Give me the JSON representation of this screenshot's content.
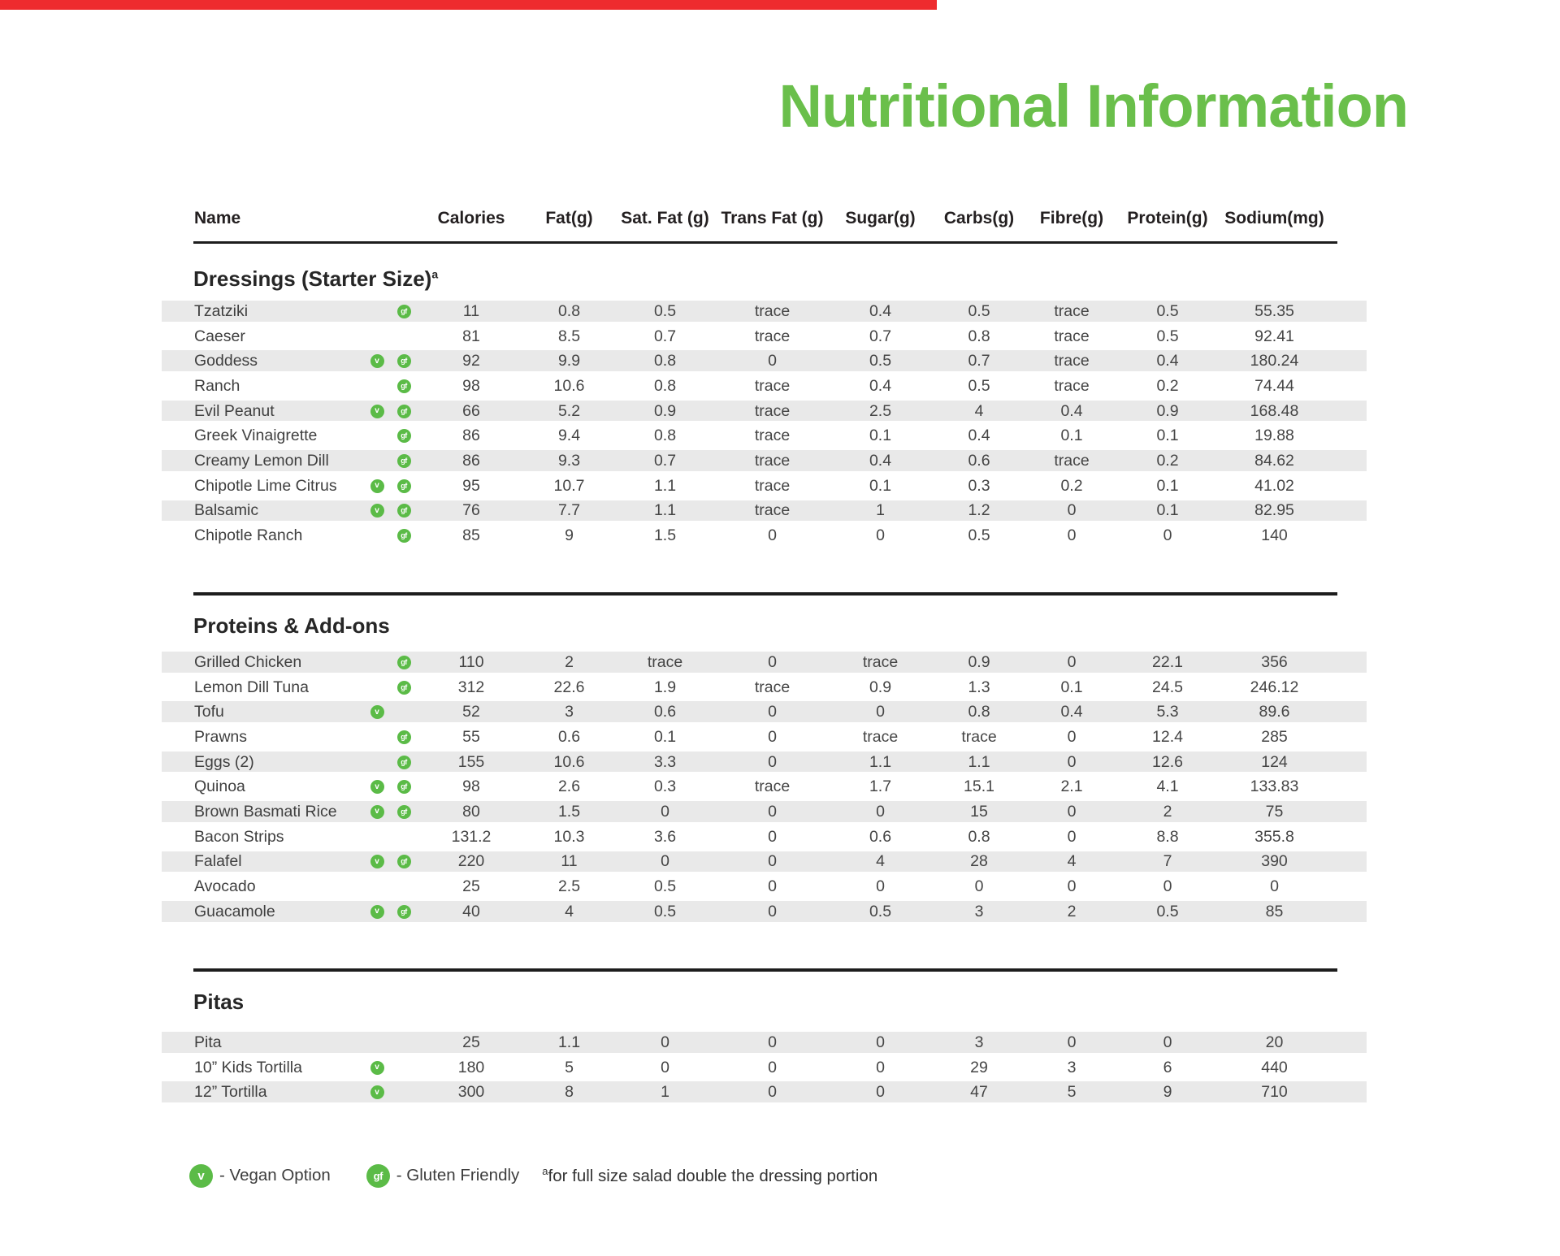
{
  "page": {
    "title": "Nutritional Information"
  },
  "colors": {
    "accent_green": "#6abf4b",
    "badge_green": "#5bbb47",
    "top_bar_red": "#ee2b2e",
    "row_shade": "#e9e9e9"
  },
  "table": {
    "columns": [
      "Name",
      "Calories",
      "Fat(g)",
      "Sat. Fat (g)",
      "Trans Fat (g)",
      "Sugar(g)",
      "Carbs(g)",
      "Fibre(g)",
      "Protein(g)",
      "Sodium(mg)"
    ],
    "sections": [
      {
        "title": "Dressings (Starter Size)",
        "title_sup": "a",
        "rows": [
          {
            "name": "Tzatziki",
            "vegan": false,
            "gf": true,
            "values": [
              "11",
              "0.8",
              "0.5",
              "trace",
              "0.4",
              "0.5",
              "trace",
              "0.5",
              "55.35"
            ]
          },
          {
            "name": "Caeser",
            "vegan": false,
            "gf": false,
            "values": [
              "81",
              "8.5",
              "0.7",
              "trace",
              "0.7",
              "0.8",
              "trace",
              "0.5",
              "92.41"
            ]
          },
          {
            "name": "Goddess",
            "vegan": true,
            "gf": true,
            "values": [
              "92",
              "9.9",
              "0.8",
              "0",
              "0.5",
              "0.7",
              "trace",
              "0.4",
              "180.24"
            ]
          },
          {
            "name": "Ranch",
            "vegan": false,
            "gf": true,
            "values": [
              "98",
              "10.6",
              "0.8",
              "trace",
              "0.4",
              "0.5",
              "trace",
              "0.2",
              "74.44"
            ]
          },
          {
            "name": "Evil Peanut",
            "vegan": true,
            "gf": true,
            "values": [
              "66",
              "5.2",
              "0.9",
              "trace",
              "2.5",
              "4",
              "0.4",
              "0.9",
              "168.48"
            ]
          },
          {
            "name": "Greek Vinaigrette",
            "vegan": false,
            "gf": true,
            "values": [
              "86",
              "9.4",
              "0.8",
              "trace",
              "0.1",
              "0.4",
              "0.1",
              "0.1",
              "19.88"
            ]
          },
          {
            "name": "Creamy Lemon Dill",
            "vegan": false,
            "gf": true,
            "values": [
              "86",
              "9.3",
              "0.7",
              "trace",
              "0.4",
              "0.6",
              "trace",
              "0.2",
              "84.62"
            ]
          },
          {
            "name": "Chipotle Lime Citrus",
            "vegan": true,
            "gf": true,
            "values": [
              "95",
              "10.7",
              "1.1",
              "trace",
              "0.1",
              "0.3",
              "0.2",
              "0.1",
              "41.02"
            ]
          },
          {
            "name": "Balsamic",
            "vegan": true,
            "gf": true,
            "values": [
              "76",
              "7.7",
              "1.1",
              "trace",
              "1",
              "1.2",
              "0",
              "0.1",
              "82.95"
            ]
          },
          {
            "name": "Chipotle Ranch",
            "vegan": false,
            "gf": true,
            "values": [
              "85",
              "9",
              "1.5",
              "0",
              "0",
              "0.5",
              "0",
              "0",
              "140"
            ]
          }
        ]
      },
      {
        "title": "Proteins & Add-ons",
        "title_sup": "",
        "rows": [
          {
            "name": "Grilled Chicken",
            "vegan": false,
            "gf": true,
            "values": [
              "110",
              "2",
              "trace",
              "0",
              "trace",
              "0.9",
              "0",
              "22.1",
              "356"
            ]
          },
          {
            "name": "Lemon Dill Tuna",
            "vegan": false,
            "gf": true,
            "values": [
              "312",
              "22.6",
              "1.9",
              "trace",
              "0.9",
              "1.3",
              "0.1",
              "24.5",
              "246.12"
            ]
          },
          {
            "name": "Tofu",
            "vegan": true,
            "gf": false,
            "values": [
              "52",
              "3",
              "0.6",
              "0",
              "0",
              "0.8",
              "0.4",
              "5.3",
              "89.6"
            ]
          },
          {
            "name": "Prawns",
            "vegan": false,
            "gf": true,
            "values": [
              "55",
              "0.6",
              "0.1",
              "0",
              "trace",
              "trace",
              "0",
              "12.4",
              "285"
            ]
          },
          {
            "name": "Eggs (2)",
            "vegan": false,
            "gf": true,
            "values": [
              "155",
              "10.6",
              "3.3",
              "0",
              "1.1",
              "1.1",
              "0",
              "12.6",
              "124"
            ]
          },
          {
            "name": "Quinoa",
            "vegan": true,
            "gf": true,
            "values": [
              "98",
              "2.6",
              "0.3",
              "trace",
              "1.7",
              "15.1",
              "2.1",
              "4.1",
              "133.83"
            ]
          },
          {
            "name": "Brown Basmati Rice",
            "vegan": true,
            "gf": true,
            "values": [
              "80",
              "1.5",
              "0",
              "0",
              "0",
              "15",
              "0",
              "2",
              "75"
            ]
          },
          {
            "name": "Bacon Strips",
            "vegan": false,
            "gf": false,
            "values": [
              "131.2",
              "10.3",
              "3.6",
              "0",
              "0.6",
              "0.8",
              "0",
              "8.8",
              "355.8"
            ]
          },
          {
            "name": "Falafel",
            "vegan": true,
            "gf": true,
            "values": [
              "220",
              "11",
              "0",
              "0",
              "4",
              "28",
              "4",
              "7",
              "390"
            ]
          },
          {
            "name": "Avocado",
            "vegan": false,
            "gf": false,
            "values": [
              "25",
              "2.5",
              "0.5",
              "0",
              "0",
              "0",
              "0",
              "0",
              "0"
            ]
          },
          {
            "name": "Guacamole",
            "vegan": true,
            "gf": true,
            "values": [
              "40",
              "4",
              "0.5",
              "0",
              "0.5",
              "3",
              "2",
              "0.5",
              "85"
            ]
          }
        ]
      },
      {
        "title": "Pitas",
        "title_sup": "",
        "rows": [
          {
            "name": "Pita",
            "vegan": false,
            "gf": false,
            "values": [
              "25",
              "1.1",
              "0",
              "0",
              "0",
              "3",
              "0",
              "0",
              "20"
            ]
          },
          {
            "name": "10” Kids Tortilla",
            "vegan": true,
            "gf": false,
            "values": [
              "180",
              "5",
              "0",
              "0",
              "0",
              "29",
              "3",
              "6",
              "440"
            ]
          },
          {
            "name": "12” Tortilla",
            "vegan": true,
            "gf": false,
            "values": [
              "300",
              "8",
              "1",
              "0",
              "0",
              "47",
              "5",
              "9",
              "710"
            ]
          }
        ]
      }
    ]
  },
  "legend": {
    "vegan_badge": "v",
    "vegan_label": "- Vegan Option",
    "gf_badge": "gf",
    "gf_label": "- Gluten Friendly",
    "footnote_sup": "a",
    "footnote": "for full size salad double the dressing portion"
  }
}
